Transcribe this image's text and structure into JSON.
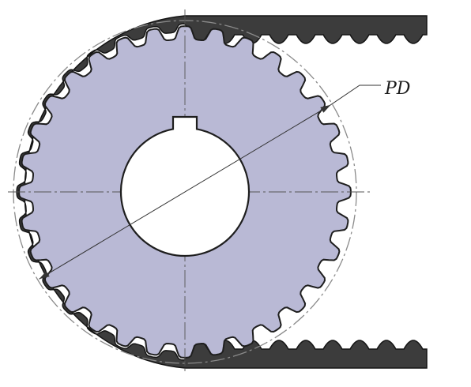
{
  "diagram": {
    "pitch_diameter_label": "PD",
    "colors": {
      "pulley_fill": "#b9b9d5",
      "pulley_stroke": "#1e1e1e",
      "belt_fill": "#3c3c3c",
      "belt_stroke": "#141414",
      "centerline": "#555555",
      "pitch_circle": "#8a8a8a",
      "dimension_line": "#333333",
      "bore_fill": "#ffffff"
    },
    "pulley_teeth": 32,
    "belt_teeth_visible_on_span": 9,
    "icons": [
      "keyway-icon",
      "dimension-arrow-icon"
    ]
  }
}
